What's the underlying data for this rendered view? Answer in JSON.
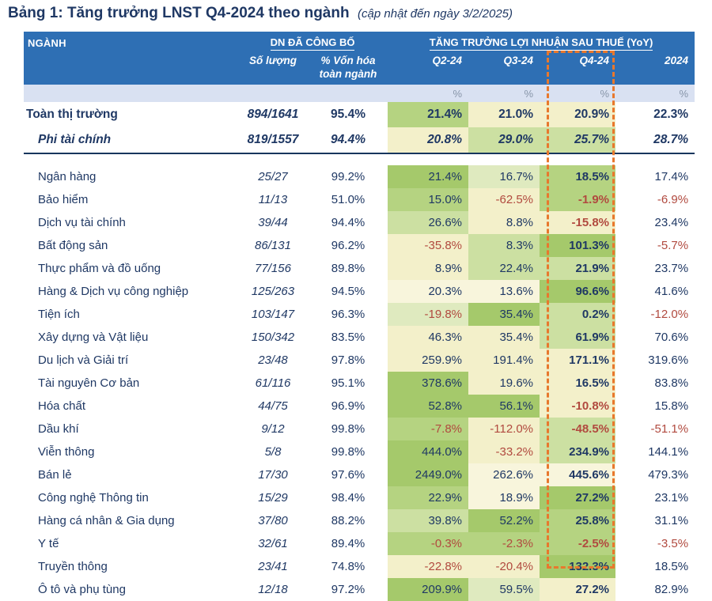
{
  "title": {
    "main": "Bảng 1: Tăng trưởng LNST Q4-2024 theo ngành",
    "note": "(cập nhật đến ngày 3/2/2025)"
  },
  "colors": {
    "headerBlue": "#2E6FB4",
    "subRow": "#D9E1F2",
    "navy": "#1F3864",
    "sepNavy": "#17365D",
    "red": "#B14A3F",
    "orange": "#E8782D",
    "g1": "#A5C96B",
    "g2": "#B5D381",
    "g3": "#CCE0A2",
    "g4": "#DFEABF",
    "c1": "#F3F0CA",
    "c2": "#F8F5DC"
  },
  "headers": {
    "nganh": "NGÀNH",
    "group_published": "DN ĐÃ CÔNG BỐ",
    "group_growth": "TĂNG TRƯỞNG LỢI NHUẬN SAU THUẾ (YoY)",
    "col_count": "Số lượng",
    "col_cap": "% Vốn hóa toàn ngành",
    "col_q2": "Q2-24",
    "col_q3": "Q3-24",
    "col_q4": "Q4-24",
    "col_2024": "2024",
    "unit": "%"
  },
  "chart_data": {
    "type": "table",
    "title": "Bảng 1: Tăng trưởng LNST Q4-2024 theo ngành (cập nhật đến ngày 3/2/2025)",
    "columns": [
      "NGÀNH",
      "Số lượng",
      "% Vốn hóa toàn ngành",
      "Q2-24",
      "Q3-24",
      "Q4-24",
      "2024"
    ],
    "legend_note": "bg codes: g1 strongest green → g4 pale green, c1/c2 cream, w white; heatmap of growth values",
    "rows": [
      {
        "name": "Toàn thị trường",
        "style": "total",
        "count": "894/1641",
        "cap": "95.4%",
        "cells": [
          {
            "v": "21.4%",
            "bg": "g2"
          },
          {
            "v": "21.0%",
            "bg": "c1"
          },
          {
            "v": "20.9%",
            "bg": "c1"
          },
          {
            "v": "22.3%",
            "bg": "w"
          }
        ]
      },
      {
        "name": "Phi tài chính",
        "style": "nonfin",
        "count": "819/1557",
        "cap": "94.4%",
        "cells": [
          {
            "v": "20.8%",
            "bg": "c1"
          },
          {
            "v": "29.0%",
            "bg": "g3"
          },
          {
            "v": "25.7%",
            "bg": "g3"
          },
          {
            "v": "28.7%",
            "bg": "w"
          }
        ]
      },
      {
        "name": "Ngân hàng",
        "style": "sector",
        "count": "25/27",
        "cap": "99.2%",
        "cells": [
          {
            "v": "21.4%",
            "bg": "g1"
          },
          {
            "v": "16.7%",
            "bg": "g4"
          },
          {
            "v": "18.5%",
            "bg": "g2"
          },
          {
            "v": "17.4%",
            "bg": "w"
          }
        ]
      },
      {
        "name": "Bảo hiểm",
        "style": "sector",
        "count": "11/13",
        "cap": "51.0%",
        "cells": [
          {
            "v": "15.0%",
            "bg": "g2"
          },
          {
            "v": "-62.5%",
            "bg": "c1"
          },
          {
            "v": "-1.9%",
            "bg": "g2"
          },
          {
            "v": "-6.9%",
            "bg": "w"
          }
        ]
      },
      {
        "name": "Dịch vụ tài chính",
        "style": "sector",
        "count": "39/44",
        "cap": "94.4%",
        "cells": [
          {
            "v": "26.6%",
            "bg": "g3"
          },
          {
            "v": "8.8%",
            "bg": "c1"
          },
          {
            "v": "-15.8%",
            "bg": "c1"
          },
          {
            "v": "23.4%",
            "bg": "w"
          }
        ]
      },
      {
        "name": "Bất động sản",
        "style": "sector",
        "count": "86/131",
        "cap": "96.2%",
        "cells": [
          {
            "v": "-35.8%",
            "bg": "c1"
          },
          {
            "v": "8.3%",
            "bg": "g3"
          },
          {
            "v": "101.3%",
            "bg": "g1"
          },
          {
            "v": "-5.7%",
            "bg": "w"
          }
        ]
      },
      {
        "name": "Thực phẩm và đồ uống",
        "style": "sector",
        "count": "77/156",
        "cap": "89.8%",
        "cells": [
          {
            "v": "8.9%",
            "bg": "c1"
          },
          {
            "v": "22.4%",
            "bg": "g3"
          },
          {
            "v": "21.9%",
            "bg": "g3"
          },
          {
            "v": "23.7%",
            "bg": "w"
          }
        ]
      },
      {
        "name": "Hàng & Dịch vụ công nghiệp",
        "style": "sector",
        "count": "125/263",
        "cap": "94.5%",
        "cells": [
          {
            "v": "20.3%",
            "bg": "c2"
          },
          {
            "v": "13.6%",
            "bg": "c2"
          },
          {
            "v": "96.6%",
            "bg": "g1"
          },
          {
            "v": "41.6%",
            "bg": "w"
          }
        ]
      },
      {
        "name": "Tiện ích",
        "style": "sector",
        "count": "103/147",
        "cap": "96.3%",
        "cells": [
          {
            "v": "-19.8%",
            "bg": "g4"
          },
          {
            "v": "35.4%",
            "bg": "g1"
          },
          {
            "v": "0.2%",
            "bg": "g3"
          },
          {
            "v": "-12.0%",
            "bg": "w"
          }
        ]
      },
      {
        "name": "Xây dựng và Vật liệu",
        "style": "sector",
        "count": "150/342",
        "cap": "83.5%",
        "cells": [
          {
            "v": "46.3%",
            "bg": "c1"
          },
          {
            "v": "35.4%",
            "bg": "c1"
          },
          {
            "v": "61.9%",
            "bg": "g3"
          },
          {
            "v": "70.6%",
            "bg": "w"
          }
        ]
      },
      {
        "name": "Du lịch và Giải trí",
        "style": "sector",
        "count": "23/48",
        "cap": "97.8%",
        "cells": [
          {
            "v": "259.9%",
            "bg": "c1"
          },
          {
            "v": "191.4%",
            "bg": "c1"
          },
          {
            "v": "171.1%",
            "bg": "c1"
          },
          {
            "v": "319.6%",
            "bg": "w"
          }
        ]
      },
      {
        "name": "Tài nguyên Cơ bản",
        "style": "sector",
        "count": "61/116",
        "cap": "95.1%",
        "cells": [
          {
            "v": "378.6%",
            "bg": "g1"
          },
          {
            "v": "19.6%",
            "bg": "c1"
          },
          {
            "v": "16.5%",
            "bg": "c1"
          },
          {
            "v": "83.8%",
            "bg": "w"
          }
        ]
      },
      {
        "name": "Hóa chất",
        "style": "sector",
        "count": "44/75",
        "cap": "96.9%",
        "cells": [
          {
            "v": "52.8%",
            "bg": "g1"
          },
          {
            "v": "56.1%",
            "bg": "g1"
          },
          {
            "v": "-10.8%",
            "bg": "c1"
          },
          {
            "v": "15.8%",
            "bg": "w"
          }
        ]
      },
      {
        "name": "Dầu khí",
        "style": "sector",
        "count": "9/12",
        "cap": "99.8%",
        "cells": [
          {
            "v": "-7.8%",
            "bg": "g2"
          },
          {
            "v": "-112.0%",
            "bg": "c1"
          },
          {
            "v": "-48.5%",
            "bg": "g3"
          },
          {
            "v": "-51.1%",
            "bg": "w"
          }
        ]
      },
      {
        "name": "Viễn thông",
        "style": "sector",
        "count": "5/8",
        "cap": "99.8%",
        "cells": [
          {
            "v": "444.0%",
            "bg": "g1"
          },
          {
            "v": "-33.2%",
            "bg": "c1"
          },
          {
            "v": "234.9%",
            "bg": "g3"
          },
          {
            "v": "144.1%",
            "bg": "w"
          }
        ]
      },
      {
        "name": "Bán lẻ",
        "style": "sector",
        "count": "17/30",
        "cap": "97.6%",
        "cells": [
          {
            "v": "2449.0%",
            "bg": "g1"
          },
          {
            "v": "262.6%",
            "bg": "c2"
          },
          {
            "v": "445.6%",
            "bg": "c2"
          },
          {
            "v": "479.3%",
            "bg": "w"
          }
        ]
      },
      {
        "name": "Công nghệ Thông tin",
        "style": "sector",
        "count": "15/29",
        "cap": "98.4%",
        "cells": [
          {
            "v": "22.9%",
            "bg": "g2"
          },
          {
            "v": "18.9%",
            "bg": "c2"
          },
          {
            "v": "27.2%",
            "bg": "g1"
          },
          {
            "v": "23.1%",
            "bg": "w"
          }
        ]
      },
      {
        "name": "Hàng cá nhân & Gia dụng",
        "style": "sector",
        "count": "37/80",
        "cap": "88.2%",
        "cells": [
          {
            "v": "39.8%",
            "bg": "g3"
          },
          {
            "v": "52.2%",
            "bg": "g1"
          },
          {
            "v": "25.8%",
            "bg": "g2"
          },
          {
            "v": "31.1%",
            "bg": "w"
          }
        ]
      },
      {
        "name": "Y tế",
        "style": "sector",
        "count": "32/61",
        "cap": "89.4%",
        "cells": [
          {
            "v": "-0.3%",
            "bg": "g2"
          },
          {
            "v": "-2.3%",
            "bg": "g2"
          },
          {
            "v": "-2.5%",
            "bg": "g2"
          },
          {
            "v": "-3.5%",
            "bg": "w"
          }
        ]
      },
      {
        "name": "Truyền thông",
        "style": "sector",
        "count": "23/41",
        "cap": "74.8%",
        "cells": [
          {
            "v": "-22.8%",
            "bg": "c1"
          },
          {
            "v": "-20.4%",
            "bg": "c1"
          },
          {
            "v": "132.3%",
            "bg": "g1"
          },
          {
            "v": "18.5%",
            "bg": "w"
          }
        ]
      },
      {
        "name": "Ô tô và phụ tùng",
        "style": "sector",
        "count": "12/18",
        "cap": "97.2%",
        "cells": [
          {
            "v": "209.9%",
            "bg": "g1"
          },
          {
            "v": "59.5%",
            "bg": "g4"
          },
          {
            "v": "27.2%",
            "bg": "c1"
          },
          {
            "v": "82.9%",
            "bg": "w"
          }
        ]
      }
    ]
  }
}
